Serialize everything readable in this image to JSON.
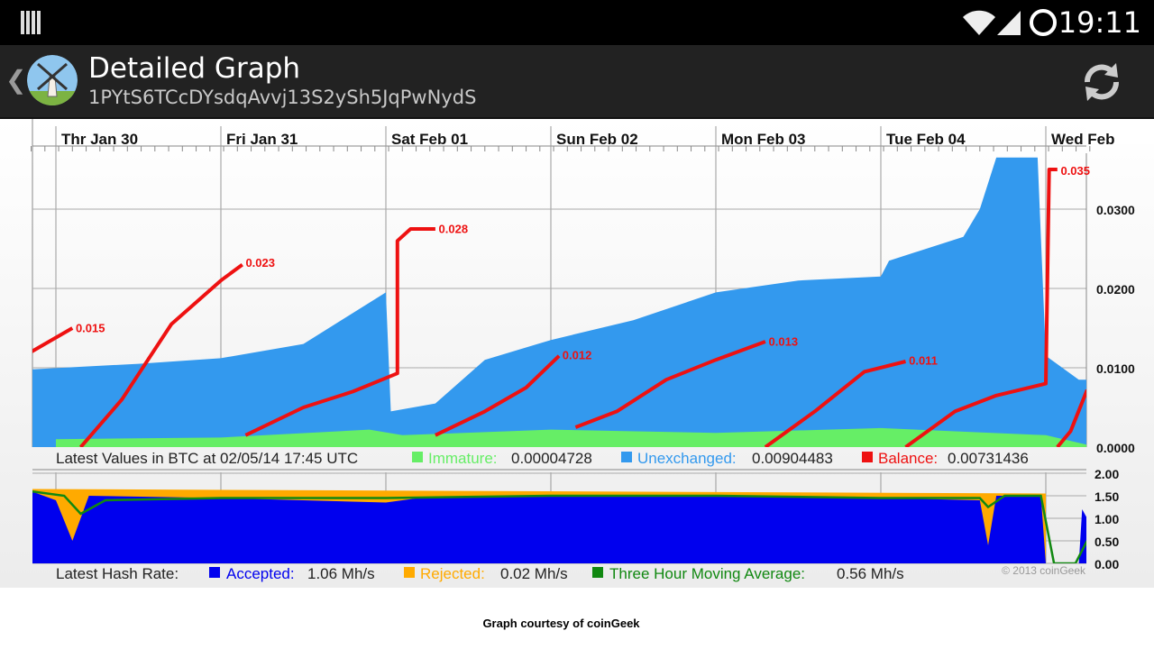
{
  "status_bar": {
    "time": "19:11",
    "icons": [
      "notification-bars-icon",
      "wifi-icon",
      "cell-signal-icon",
      "sync-circle-icon"
    ]
  },
  "action_bar": {
    "title": "Detailed Graph",
    "subtitle": "1PYtS6TCcDYsdqAvvj13S2ySh5JqPwNydS",
    "icons": [
      "back-chevron-icon",
      "windmill-app-icon",
      "refresh-icon"
    ]
  },
  "colors": {
    "immature": "#66ee66",
    "unexchanged": "#3399ee",
    "balance": "#ee1111",
    "accepted": "#0000ee",
    "rejected": "#ffaa00",
    "moving_average": "#118811"
  },
  "chart_data": [
    {
      "type": "area",
      "x_ticks": [
        "Thr  Jan 30",
        "Fri  Jan 31",
        "Sat  Feb 01",
        "Sun  Feb 02",
        "Mon  Feb 03",
        "Tue  Feb 04",
        "Wed  Feb"
      ],
      "y_ticks": [
        "0.0300",
        "0.0200",
        "0.0100",
        "0.0000"
      ],
      "ylim": [
        0,
        0.037
      ],
      "x_range_days": [
        -0.15,
        6.25
      ],
      "grid": true,
      "series": [
        {
          "name": "Immature",
          "points": [
            [
              0,
              0.001
            ],
            [
              1,
              0.0012
            ],
            [
              1.9,
              0.0022
            ],
            [
              2.1,
              0.0015
            ],
            [
              3,
              0.0022
            ],
            [
              4,
              0.0018
            ],
            [
              5,
              0.0024
            ],
            [
              6,
              0.0015
            ],
            [
              6.25,
              0.0003
            ]
          ]
        },
        {
          "name": "Unexchanged",
          "points": [
            [
              -0.15,
              0.0098
            ],
            [
              0.5,
              0.0105
            ],
            [
              1,
              0.0112
            ],
            [
              1.5,
              0.013
            ],
            [
              2,
              0.0195
            ],
            [
              2.03,
              0.0045
            ],
            [
              2.3,
              0.0055
            ],
            [
              2.6,
              0.011
            ],
            [
              3,
              0.0135
            ],
            [
              3.5,
              0.016
            ],
            [
              4,
              0.0195
            ],
            [
              4.5,
              0.021
            ],
            [
              5,
              0.0215
            ],
            [
              5.05,
              0.0235
            ],
            [
              5.5,
              0.0265
            ],
            [
              5.6,
              0.03
            ],
            [
              5.7,
              0.0365
            ],
            [
              5.95,
              0.0365
            ],
            [
              6.0,
              0.0115
            ],
            [
              6.2,
              0.0085
            ],
            [
              6.25,
              0.0085
            ]
          ]
        },
        {
          "name": "Balance",
          "segments": [
            [
              [
                -0.15,
                0.012
              ],
              [
                0.1,
                0.015
              ]
            ],
            [
              [
                0.15,
                0.0
              ],
              [
                0.4,
                0.006
              ],
              [
                0.7,
                0.0155
              ],
              [
                1.0,
                0.021
              ],
              [
                1.13,
                0.023
              ]
            ],
            [
              [
                1.15,
                0.0015
              ],
              [
                1.5,
                0.005
              ],
              [
                1.8,
                0.007
              ],
              [
                2.07,
                0.0093
              ],
              [
                2.07,
                0.026
              ],
              [
                2.15,
                0.0275
              ],
              [
                2.3,
                0.0275
              ]
            ],
            [
              [
                2.3,
                0.0015
              ],
              [
                2.6,
                0.0045
              ],
              [
                2.85,
                0.0075
              ],
              [
                3.05,
                0.0115
              ]
            ],
            [
              [
                3.15,
                0.0025
              ],
              [
                3.4,
                0.0045
              ],
              [
                3.7,
                0.0085
              ],
              [
                4.0,
                0.011
              ],
              [
                4.3,
                0.0133
              ]
            ],
            [
              [
                4.3,
                0.0
              ],
              [
                4.6,
                0.0045
              ],
              [
                4.9,
                0.0095
              ],
              [
                5.15,
                0.0108
              ]
            ],
            [
              [
                5.15,
                0.0
              ],
              [
                5.45,
                0.0045
              ],
              [
                5.7,
                0.0065
              ],
              [
                6.0,
                0.008
              ],
              [
                6.02,
                0.035
              ],
              [
                6.07,
                0.035
              ]
            ],
            [
              [
                6.07,
                0.0
              ],
              [
                6.15,
                0.002
              ],
              [
                6.25,
                0.0072
              ]
            ]
          ]
        }
      ],
      "annotations": [
        {
          "text": "0.015",
          "x": 0.12,
          "y": 0.0145
        },
        {
          "text": "0.023",
          "x": 1.15,
          "y": 0.0227
        },
        {
          "text": "0.028",
          "x": 2.32,
          "y": 0.027
        },
        {
          "text": "0.012",
          "x": 3.07,
          "y": 0.0111
        },
        {
          "text": "0.013",
          "x": 4.32,
          "y": 0.0128
        },
        {
          "text": "0.011",
          "x": 5.17,
          "y": 0.0104
        },
        {
          "text": "0.035",
          "x": 6.09,
          "y": 0.0343
        }
      ]
    },
    {
      "type": "area",
      "y_ticks": [
        "2.00",
        "1.50",
        "1.00",
        "0.50",
        "0.00"
      ],
      "ylim": [
        0,
        2.0
      ],
      "series": [
        {
          "name": "Accepted",
          "points": [
            [
              -0.15,
              1.6
            ],
            [
              0,
              1.4
            ],
            [
              0.1,
              0.5
            ],
            [
              0.2,
              1.5
            ],
            [
              1,
              1.45
            ],
            [
              2,
              1.35
            ],
            [
              2.2,
              1.45
            ],
            [
              3,
              1.5
            ],
            [
              4,
              1.5
            ],
            [
              5,
              1.45
            ],
            [
              5.6,
              1.4
            ],
            [
              5.65,
              0.4
            ],
            [
              5.7,
              1.5
            ],
            [
              5.97,
              1.5
            ],
            [
              6.0,
              0.0
            ],
            [
              6.2,
              0.0
            ],
            [
              6.22,
              1.2
            ],
            [
              6.25,
              1.0
            ]
          ]
        },
        {
          "name": "Rejected",
          "points": [
            [
              -0.15,
              1.65
            ],
            [
              6.0,
              1.55
            ]
          ]
        },
        {
          "name": "Three Hour Moving Average",
          "points": [
            [
              -0.15,
              1.6
            ],
            [
              0.05,
              1.5
            ],
            [
              0.15,
              1.1
            ],
            [
              0.3,
              1.4
            ],
            [
              1,
              1.45
            ],
            [
              2,
              1.45
            ],
            [
              3,
              1.5
            ],
            [
              4,
              1.5
            ],
            [
              5,
              1.45
            ],
            [
              5.6,
              1.45
            ],
            [
              5.65,
              1.25
            ],
            [
              5.75,
              1.5
            ],
            [
              5.97,
              1.5
            ],
            [
              6.05,
              0.0
            ],
            [
              6.18,
              0.0
            ],
            [
              6.25,
              0.5
            ]
          ]
        }
      ]
    }
  ],
  "legend_values": {
    "prefix": "Latest Values in BTC at 02/05/14 17:45 UTC",
    "immature_label": "Immature:",
    "immature_value": "0.00004728",
    "unexchanged_label": "Unexchanged:",
    "unexchanged_value": "0.00904483",
    "balance_label": "Balance:",
    "balance_value": "0.00731436"
  },
  "legend_hash": {
    "prefix": "Latest Hash Rate:",
    "accepted_label": "Accepted:",
    "accepted_value": "1.06 Mh/s",
    "rejected_label": "Rejected:",
    "rejected_value": "0.02 Mh/s",
    "ma_label": "Three Hour Moving Average:",
    "ma_value": "0.56 Mh/s"
  },
  "copyright": "© 2013 coinGeek",
  "courtesy": "Graph courtesy of coinGeek"
}
